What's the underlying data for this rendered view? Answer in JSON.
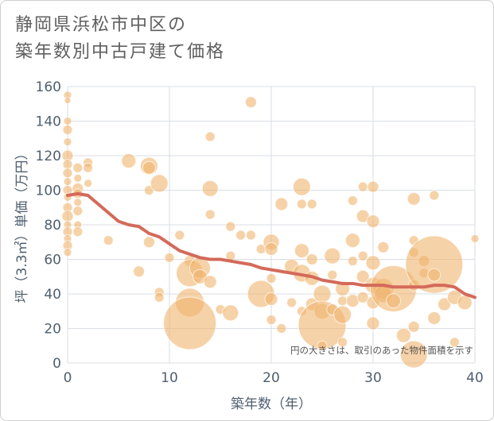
{
  "header": {
    "title_line1": "静岡県浜松市中区の",
    "title_line2": "築年数別中古戸建て価格"
  },
  "chart_data": {
    "type": "scatter",
    "title": "静岡県浜松市中区の築年数別中古戸建て価格",
    "xlabel": "築年数（年）",
    "ylabel": "坪（3.3㎡）単価（万円）",
    "xlim": [
      0,
      40
    ],
    "ylim": [
      0,
      160
    ],
    "xticks": [
      0,
      10,
      20,
      30,
      40
    ],
    "yticks": [
      0,
      20,
      40,
      60,
      80,
      100,
      120,
      140,
      160
    ],
    "grid": true,
    "note": "円の大きさは、取引のあった物件面積を示す",
    "colors": {
      "bubble": "#f0b46e",
      "trend": "#d46a5a",
      "grid": "#d9dde3",
      "axis_text": "#4f5f6f"
    },
    "trend_line": {
      "x": [
        0,
        1,
        2,
        3,
        4,
        5,
        6,
        7,
        8,
        9,
        10,
        11,
        12,
        13,
        14,
        15,
        16,
        17,
        18,
        19,
        20,
        21,
        22,
        23,
        24,
        25,
        26,
        27,
        28,
        29,
        30,
        31,
        32,
        33,
        34,
        35,
        36,
        37,
        38,
        39,
        40
      ],
      "y": [
        97,
        98,
        97,
        92,
        87,
        82,
        80,
        79,
        75,
        73,
        69,
        65,
        63,
        61,
        60,
        60,
        59,
        58,
        57,
        55,
        54,
        53,
        52,
        51,
        50,
        48,
        47,
        46,
        46,
        45,
        45,
        45,
        44,
        44,
        44,
        44,
        45,
        45,
        44,
        40,
        38
      ]
    },
    "points": [
      {
        "x": 0,
        "y": 155,
        "s": 5
      },
      {
        "x": 0,
        "y": 152,
        "s": 4
      },
      {
        "x": 0,
        "y": 140,
        "s": 5
      },
      {
        "x": 0,
        "y": 135,
        "s": 6
      },
      {
        "x": 0,
        "y": 128,
        "s": 5
      },
      {
        "x": 0,
        "y": 120,
        "s": 7
      },
      {
        "x": 0,
        "y": 115,
        "s": 6
      },
      {
        "x": 0,
        "y": 110,
        "s": 6
      },
      {
        "x": 0,
        "y": 105,
        "s": 5
      },
      {
        "x": 0,
        "y": 100,
        "s": 6
      },
      {
        "x": 0,
        "y": 96,
        "s": 5
      },
      {
        "x": 0,
        "y": 90,
        "s": 6
      },
      {
        "x": 0,
        "y": 85,
        "s": 7
      },
      {
        "x": 0,
        "y": 80,
        "s": 5
      },
      {
        "x": 0,
        "y": 76,
        "s": 6
      },
      {
        "x": 0,
        "y": 72,
        "s": 5
      },
      {
        "x": 0,
        "y": 68,
        "s": 6
      },
      {
        "x": 0,
        "y": 64,
        "s": 5
      },
      {
        "x": 1,
        "y": 113,
        "s": 6
      },
      {
        "x": 1,
        "y": 107,
        "s": 5
      },
      {
        "x": 1,
        "y": 101,
        "s": 7
      },
      {
        "x": 1,
        "y": 98,
        "s": 6
      },
      {
        "x": 1,
        "y": 93,
        "s": 5
      },
      {
        "x": 1,
        "y": 88,
        "s": 6
      },
      {
        "x": 1,
        "y": 80,
        "s": 5
      },
      {
        "x": 1,
        "y": 76,
        "s": 6
      },
      {
        "x": 2,
        "y": 116,
        "s": 6
      },
      {
        "x": 2,
        "y": 113,
        "s": 6
      },
      {
        "x": 2,
        "y": 104,
        "s": 5
      },
      {
        "x": 4,
        "y": 71,
        "s": 6
      },
      {
        "x": 6,
        "y": 117,
        "s": 9
      },
      {
        "x": 7,
        "y": 53,
        "s": 7
      },
      {
        "x": 8,
        "y": 114,
        "s": 11
      },
      {
        "x": 8,
        "y": 113,
        "s": 8
      },
      {
        "x": 8,
        "y": 100,
        "s": 6
      },
      {
        "x": 8,
        "y": 70,
        "s": 7
      },
      {
        "x": 9,
        "y": 104,
        "s": 11
      },
      {
        "x": 9,
        "y": 41,
        "s": 6
      },
      {
        "x": 9,
        "y": 38,
        "s": 6
      },
      {
        "x": 10,
        "y": 61,
        "s": 6
      },
      {
        "x": 11,
        "y": 74,
        "s": 6
      },
      {
        "x": 12,
        "y": 59,
        "s": 7
      },
      {
        "x": 12,
        "y": 52,
        "s": 17
      },
      {
        "x": 12,
        "y": 35,
        "s": 18
      },
      {
        "x": 12,
        "y": 23,
        "s": 33
      },
      {
        "x": 13,
        "y": 55,
        "s": 13
      },
      {
        "x": 13,
        "y": 50,
        "s": 9
      },
      {
        "x": 14,
        "y": 131,
        "s": 6
      },
      {
        "x": 14,
        "y": 101,
        "s": 10
      },
      {
        "x": 14,
        "y": 86,
        "s": 6
      },
      {
        "x": 14,
        "y": 47,
        "s": 8
      },
      {
        "x": 15,
        "y": 31,
        "s": 6
      },
      {
        "x": 16,
        "y": 79,
        "s": 6
      },
      {
        "x": 16,
        "y": 62,
        "s": 6
      },
      {
        "x": 16,
        "y": 29,
        "s": 10
      },
      {
        "x": 17,
        "y": 74,
        "s": 6
      },
      {
        "x": 18,
        "y": 151,
        "s": 7
      },
      {
        "x": 18,
        "y": 74,
        "s": 6
      },
      {
        "x": 19,
        "y": 66,
        "s": 6
      },
      {
        "x": 19,
        "y": 40,
        "s": 17
      },
      {
        "x": 20,
        "y": 70,
        "s": 10
      },
      {
        "x": 20,
        "y": 66,
        "s": 8
      },
      {
        "x": 20,
        "y": 49,
        "s": 6
      },
      {
        "x": 20,
        "y": 37,
        "s": 8
      },
      {
        "x": 20,
        "y": 25,
        "s": 6
      },
      {
        "x": 21,
        "y": 92,
        "s": 8
      },
      {
        "x": 21,
        "y": 20,
        "s": 6
      },
      {
        "x": 22,
        "y": 56,
        "s": 9
      },
      {
        "x": 22,
        "y": 35,
        "s": 6
      },
      {
        "x": 23,
        "y": 102,
        "s": 11
      },
      {
        "x": 23,
        "y": 92,
        "s": 6
      },
      {
        "x": 23,
        "y": 65,
        "s": 9
      },
      {
        "x": 23,
        "y": 52,
        "s": 11
      },
      {
        "x": 23,
        "y": 30,
        "s": 6
      },
      {
        "x": 24,
        "y": 92,
        "s": 6
      },
      {
        "x": 24,
        "y": 60,
        "s": 7
      },
      {
        "x": 24,
        "y": 49,
        "s": 9
      },
      {
        "x": 24,
        "y": 34,
        "s": 8
      },
      {
        "x": 25,
        "y": 40,
        "s": 11
      },
      {
        "x": 25,
        "y": 30,
        "s": 10
      },
      {
        "x": 25,
        "y": 22,
        "s": 30
      },
      {
        "x": 25,
        "y": 10,
        "s": 6
      },
      {
        "x": 26,
        "y": 62,
        "s": 10
      },
      {
        "x": 26,
        "y": 51,
        "s": 6
      },
      {
        "x": 26,
        "y": 31,
        "s": 7
      },
      {
        "x": 27,
        "y": 43,
        "s": 9
      },
      {
        "x": 27,
        "y": 36,
        "s": 6
      },
      {
        "x": 27,
        "y": 28,
        "s": 11
      },
      {
        "x": 27,
        "y": 12,
        "s": 6
      },
      {
        "x": 28,
        "y": 94,
        "s": 6
      },
      {
        "x": 28,
        "y": 71,
        "s": 9
      },
      {
        "x": 28,
        "y": 59,
        "s": 6
      },
      {
        "x": 28,
        "y": 36,
        "s": 8
      },
      {
        "x": 29,
        "y": 102,
        "s": 6
      },
      {
        "x": 29,
        "y": 85,
        "s": 8
      },
      {
        "x": 29,
        "y": 62,
        "s": 6
      },
      {
        "x": 29,
        "y": 50,
        "s": 8
      },
      {
        "x": 29,
        "y": 38,
        "s": 7
      },
      {
        "x": 30,
        "y": 102,
        "s": 7
      },
      {
        "x": 30,
        "y": 82,
        "s": 8
      },
      {
        "x": 30,
        "y": 58,
        "s": 9
      },
      {
        "x": 30,
        "y": 45,
        "s": 10
      },
      {
        "x": 30,
        "y": 35,
        "s": 8
      },
      {
        "x": 30,
        "y": 23,
        "s": 8
      },
      {
        "x": 31,
        "y": 67,
        "s": 7
      },
      {
        "x": 31,
        "y": 43,
        "s": 13
      },
      {
        "x": 31,
        "y": 40,
        "s": 11
      },
      {
        "x": 32,
        "y": 43,
        "s": 29
      },
      {
        "x": 32,
        "y": 36,
        "s": 9
      },
      {
        "x": 33,
        "y": 16,
        "s": 9
      },
      {
        "x": 34,
        "y": 95,
        "s": 8
      },
      {
        "x": 34,
        "y": 71,
        "s": 6
      },
      {
        "x": 34,
        "y": 64,
        "s": 6
      },
      {
        "x": 34,
        "y": 45,
        "s": 7
      },
      {
        "x": 34,
        "y": 21,
        "s": 7
      },
      {
        "x": 34,
        "y": 5,
        "s": 17
      },
      {
        "x": 35,
        "y": 59,
        "s": 7
      },
      {
        "x": 35,
        "y": 52,
        "s": 6
      },
      {
        "x": 36,
        "y": 97,
        "s": 6
      },
      {
        "x": 36,
        "y": 57,
        "s": 36
      },
      {
        "x": 36,
        "y": 51,
        "s": 8
      },
      {
        "x": 36,
        "y": 26,
        "s": 8
      },
      {
        "x": 37,
        "y": 34,
        "s": 8
      },
      {
        "x": 38,
        "y": 38,
        "s": 9
      },
      {
        "x": 38,
        "y": 12,
        "s": 6
      },
      {
        "x": 39,
        "y": 35,
        "s": 9
      },
      {
        "x": 40,
        "y": 72,
        "s": 5
      }
    ]
  }
}
